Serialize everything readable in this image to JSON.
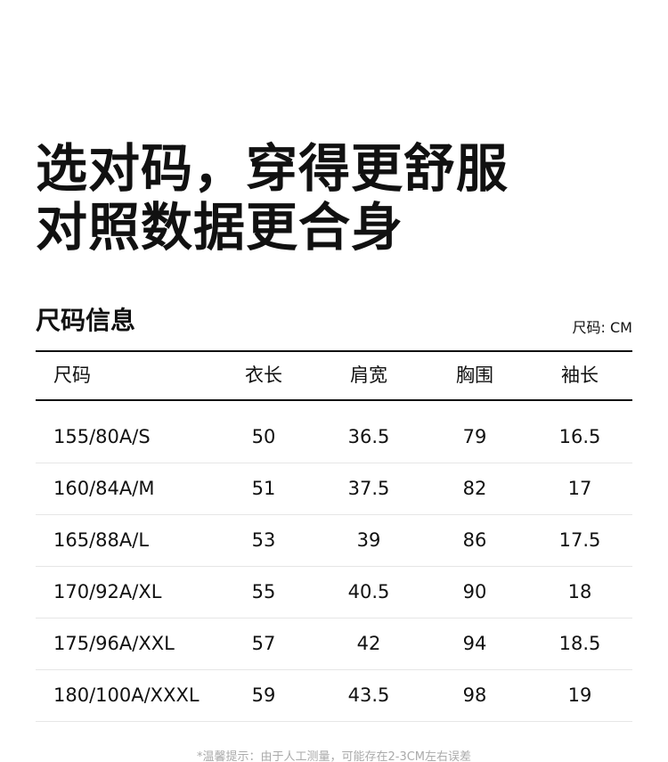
{
  "headline": {
    "line1": "选对码，穿得更舒服",
    "line2": "对照数据更合身"
  },
  "section": {
    "title": "尺码信息",
    "unit": "尺码: CM"
  },
  "table": {
    "headers": [
      "尺码",
      "衣长",
      "肩宽",
      "胸围",
      "袖长"
    ],
    "rows": [
      [
        "155/80A/S",
        "50",
        "36.5",
        "79",
        "16.5"
      ],
      [
        "160/84A/M",
        "51",
        "37.5",
        "82",
        "17"
      ],
      [
        "165/88A/L",
        "53",
        "39",
        "86",
        "17.5"
      ],
      [
        "170/92A/XL",
        "55",
        "40.5",
        "90",
        "18"
      ],
      [
        "175/96A/XXL",
        "57",
        "42",
        "94",
        "18.5"
      ],
      [
        "180/100A/XXXL",
        "59",
        "43.5",
        "98",
        "19"
      ]
    ]
  },
  "footnote": "*温馨提示：由于人工测量，可能存在2-3CM左右误差"
}
